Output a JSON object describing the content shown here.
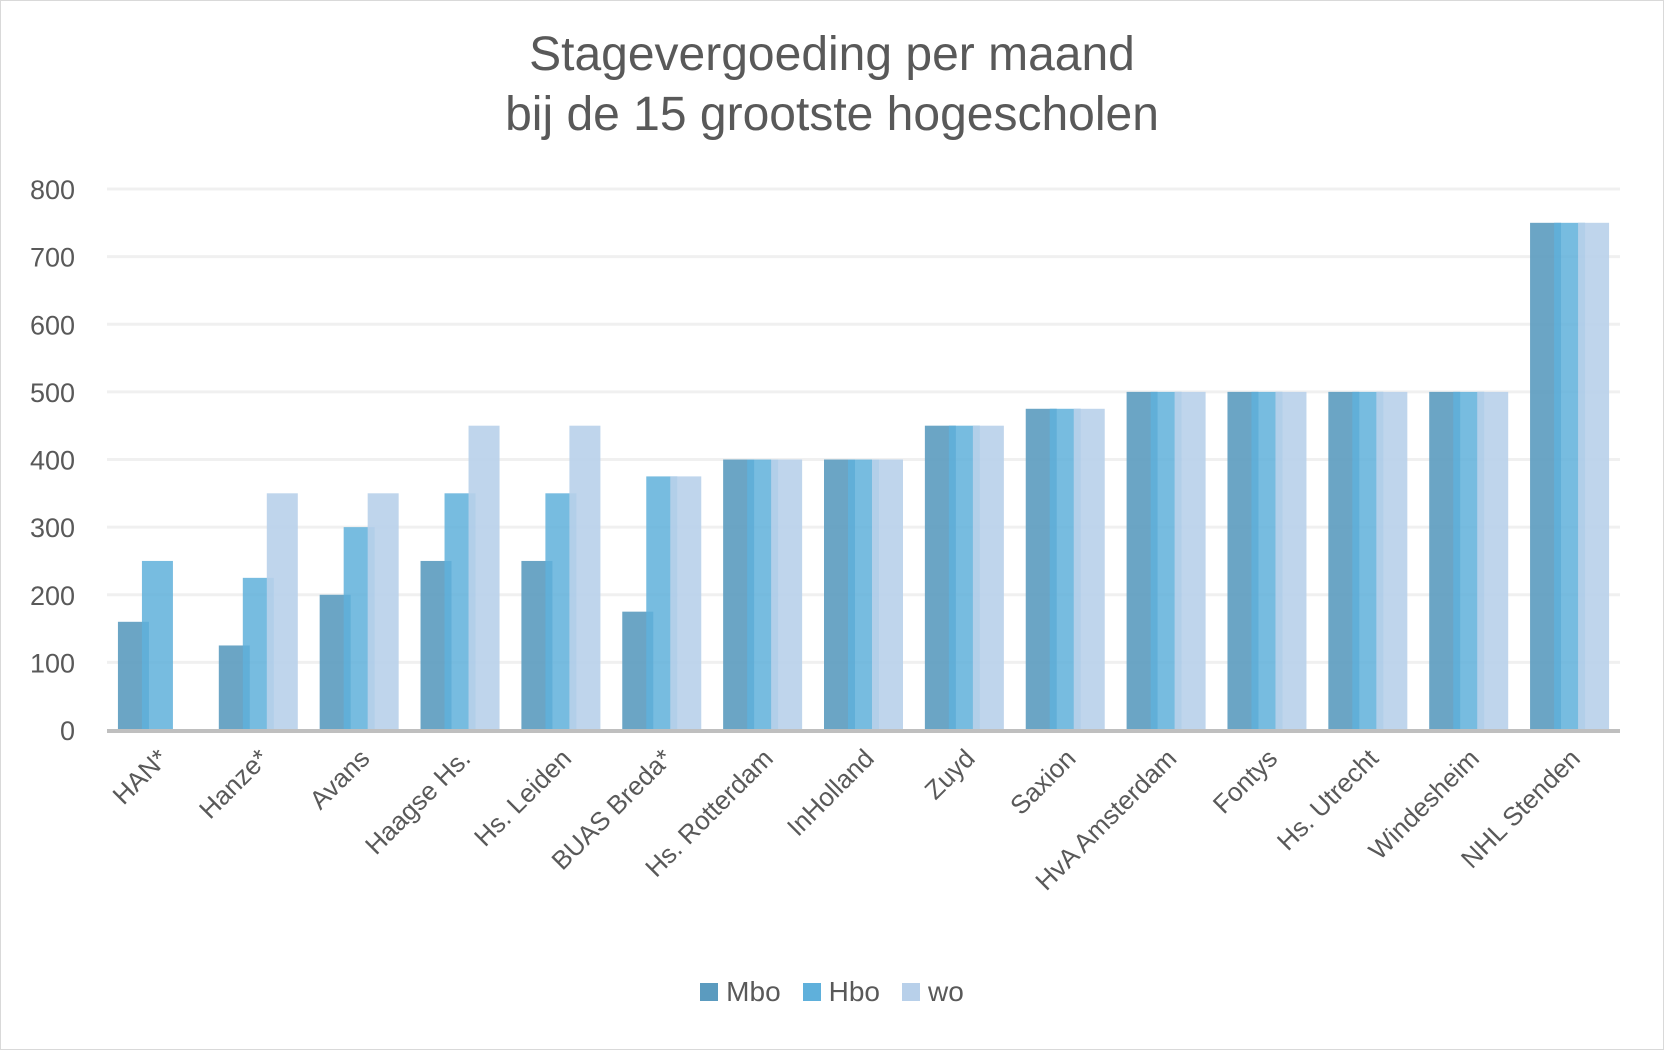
{
  "chart_data": {
    "type": "bar",
    "title": "Stagevergoeding per maand",
    "subtitle": "bij de 15 grootste hogescholen",
    "xlabel": "",
    "ylabel": "",
    "ylim": [
      0,
      800
    ],
    "yticks": [
      0,
      100,
      200,
      300,
      400,
      500,
      600,
      700,
      800
    ],
    "grid": true,
    "legend_position": "bottom",
    "categories": [
      "HAN*",
      "Hanze*",
      "Avans",
      "Haagse Hs.",
      "Hs. Leiden",
      "BUAS Breda*",
      "Hs. Rotterdam",
      "InHolland",
      "Zuyd",
      "Saxion",
      "HvA Amsterdam",
      "Fontys",
      "Hs. Utrecht",
      "Windesheim",
      "NHL Stenden"
    ],
    "series": [
      {
        "name": "Mbo",
        "color": "#5b9bbf",
        "values": [
          160,
          125,
          200,
          250,
          250,
          175,
          400,
          400,
          450,
          475,
          500,
          500,
          500,
          500,
          750
        ]
      },
      {
        "name": "Hbo",
        "color": "#5fb0db",
        "values": [
          250,
          225,
          300,
          350,
          350,
          375,
          400,
          400,
          450,
          475,
          500,
          500,
          500,
          500,
          750
        ]
      },
      {
        "name": "wo",
        "color": "#b8d0ea",
        "values": [
          null,
          350,
          350,
          450,
          450,
          375,
          400,
          400,
          450,
          475,
          500,
          500,
          500,
          500,
          750
        ]
      }
    ]
  }
}
